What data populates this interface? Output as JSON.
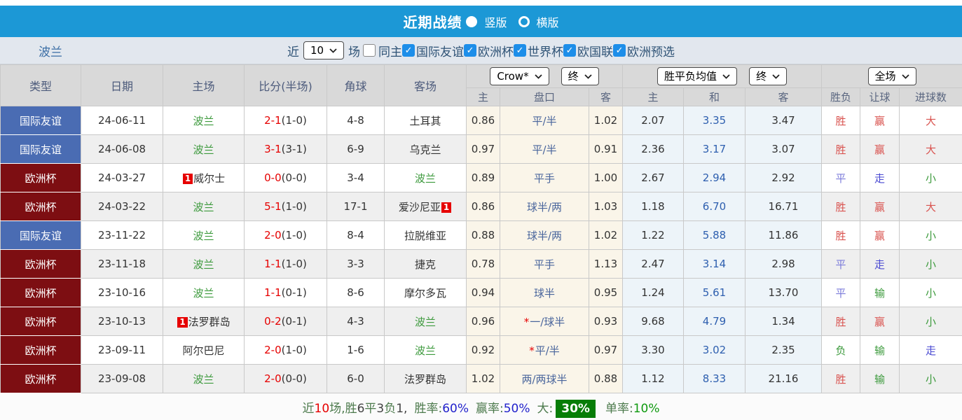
{
  "colors": {
    "header_bar_blue": "#1c98d6",
    "friendly_badge_blue": "#4a6cb3",
    "eurocup_badge_maroon": "#7d0e12",
    "team_highlight_green": "#3d9a3d",
    "score_red": "#e60000",
    "win_red": "#d9534f",
    "draw_purple": "#7b7bda",
    "go_blue": "#4a4ad2",
    "lose_green": "#3c9a3c",
    "asia_odds_col_bg": "#faf5e9",
    "euro_odds_col_bg": "#edf4f9",
    "rate_blue": "#2222cc",
    "big_rate_badge_green": "#077d07"
  },
  "title_bar": {
    "title": "近期战绩",
    "options": [
      {
        "label": "竖版",
        "selected": true
      },
      {
        "label": "横版",
        "selected": false
      }
    ]
  },
  "filter_bar": {
    "team": "波兰",
    "near": "近",
    "count": "10",
    "unit": "场",
    "same_home": "同主",
    "same_home_checked": false,
    "leagues": [
      {
        "label": "国际友谊",
        "checked": true
      },
      {
        "label": "欧洲杯",
        "checked": true
      },
      {
        "label": "世界杯",
        "checked": true
      },
      {
        "label": "欧国联",
        "checked": true
      },
      {
        "label": "欧洲预选",
        "checked": true
      }
    ]
  },
  "table": {
    "main_headers": [
      "类型",
      "日期",
      "主场",
      "比分(半场)",
      "角球",
      "客场"
    ],
    "odds_groups": [
      {
        "selects": [
          "Crow*",
          "终"
        ]
      },
      {
        "selects": [
          "胜平负均值",
          "终"
        ]
      },
      {
        "selects": [
          "全场"
        ]
      }
    ],
    "sub_headers": [
      "主",
      "盘口",
      "客",
      "主",
      "和",
      "客",
      "胜负",
      "让球",
      "进球数"
    ],
    "rows": [
      {
        "type": "国际友谊",
        "type_style": "friendly",
        "date": "24-06-11",
        "home": {
          "name": "波兰",
          "team": true
        },
        "score": "2-1",
        "half": "(1-0)",
        "corners": "4-8",
        "away": {
          "name": "土耳其",
          "team": false
        },
        "asia_home": "0.86",
        "handicap": "平/半",
        "handicap_star": false,
        "asia_away": "1.02",
        "euro_home": "2.07",
        "euro_draw": "3.35",
        "euro_away": "3.47",
        "outcome": {
          "text": "胜",
          "color": "red"
        },
        "handicap_result": {
          "text": "赢",
          "color": "red"
        },
        "goals": {
          "text": "大",
          "color": "red"
        }
      },
      {
        "type": "国际友谊",
        "type_style": "friendly",
        "date": "24-06-08",
        "home": {
          "name": "波兰",
          "team": true
        },
        "score": "3-1",
        "half": "(3-1)",
        "corners": "6-9",
        "away": {
          "name": "乌克兰",
          "team": false
        },
        "asia_home": "0.97",
        "handicap": "平/半",
        "handicap_star": false,
        "asia_away": "0.91",
        "euro_home": "2.36",
        "euro_draw": "3.17",
        "euro_away": "3.07",
        "outcome": {
          "text": "胜",
          "color": "red"
        },
        "handicap_result": {
          "text": "赢",
          "color": "red"
        },
        "goals": {
          "text": "大",
          "color": "red"
        }
      },
      {
        "type": "欧洲杯",
        "type_style": "euro",
        "date": "24-03-27",
        "home": {
          "name": "威尔士",
          "team": false,
          "card": "1",
          "card_pos": "before"
        },
        "score": "0-0",
        "half": "(0-0)",
        "corners": "3-4",
        "away": {
          "name": "波兰",
          "team": true
        },
        "asia_home": "0.89",
        "handicap": "平手",
        "handicap_star": false,
        "asia_away": "1.00",
        "euro_home": "2.67",
        "euro_draw": "2.94",
        "euro_away": "2.92",
        "outcome": {
          "text": "平",
          "color": "purple"
        },
        "handicap_result": {
          "text": "走",
          "color": "blue"
        },
        "goals": {
          "text": "小",
          "color": "green"
        }
      },
      {
        "type": "欧洲杯",
        "type_style": "euro",
        "date": "24-03-22",
        "home": {
          "name": "波兰",
          "team": true
        },
        "score": "5-1",
        "half": "(1-0)",
        "corners": "17-1",
        "away": {
          "name": "爱沙尼亚",
          "team": false,
          "card": "1",
          "card_pos": "after"
        },
        "asia_home": "0.86",
        "handicap": "球半/两",
        "handicap_star": false,
        "asia_away": "1.03",
        "euro_home": "1.18",
        "euro_draw": "6.70",
        "euro_away": "16.71",
        "outcome": {
          "text": "胜",
          "color": "red"
        },
        "handicap_result": {
          "text": "赢",
          "color": "red"
        },
        "goals": {
          "text": "大",
          "color": "red"
        }
      },
      {
        "type": "国际友谊",
        "type_style": "friendly",
        "date": "23-11-22",
        "home": {
          "name": "波兰",
          "team": true
        },
        "score": "2-0",
        "half": "(1-0)",
        "corners": "8-4",
        "away": {
          "name": "拉脱维亚",
          "team": false
        },
        "asia_home": "0.88",
        "handicap": "球半/两",
        "handicap_star": false,
        "asia_away": "1.02",
        "euro_home": "1.22",
        "euro_draw": "5.88",
        "euro_away": "11.86",
        "outcome": {
          "text": "胜",
          "color": "red"
        },
        "handicap_result": {
          "text": "赢",
          "color": "red"
        },
        "goals": {
          "text": "小",
          "color": "green"
        }
      },
      {
        "type": "欧洲杯",
        "type_style": "euro",
        "date": "23-11-18",
        "home": {
          "name": "波兰",
          "team": true
        },
        "score": "1-1",
        "half": "(1-0)",
        "corners": "3-3",
        "away": {
          "name": "捷克",
          "team": false
        },
        "asia_home": "0.78",
        "handicap": "平手",
        "handicap_star": false,
        "asia_away": "1.13",
        "euro_home": "2.47",
        "euro_draw": "3.14",
        "euro_away": "2.98",
        "outcome": {
          "text": "平",
          "color": "purple"
        },
        "handicap_result": {
          "text": "走",
          "color": "blue"
        },
        "goals": {
          "text": "小",
          "color": "green"
        }
      },
      {
        "type": "欧洲杯",
        "type_style": "euro",
        "date": "23-10-16",
        "home": {
          "name": "波兰",
          "team": true
        },
        "score": "1-1",
        "half": "(0-1)",
        "corners": "8-6",
        "away": {
          "name": "摩尔多瓦",
          "team": false
        },
        "asia_home": "0.94",
        "handicap": "球半",
        "handicap_star": false,
        "asia_away": "0.95",
        "euro_home": "1.24",
        "euro_draw": "5.61",
        "euro_away": "13.70",
        "outcome": {
          "text": "平",
          "color": "purple"
        },
        "handicap_result": {
          "text": "输",
          "color": "green"
        },
        "goals": {
          "text": "小",
          "color": "green"
        }
      },
      {
        "type": "欧洲杯",
        "type_style": "euro",
        "date": "23-10-13",
        "home": {
          "name": "法罗群岛",
          "team": false,
          "card": "1",
          "card_pos": "before"
        },
        "score": "0-2",
        "half": "(0-1)",
        "corners": "4-3",
        "away": {
          "name": "波兰",
          "team": true
        },
        "asia_home": "0.96",
        "handicap": "一/球半",
        "handicap_star": true,
        "asia_away": "0.93",
        "euro_home": "9.68",
        "euro_draw": "4.79",
        "euro_away": "1.34",
        "outcome": {
          "text": "胜",
          "color": "red"
        },
        "handicap_result": {
          "text": "赢",
          "color": "red"
        },
        "goals": {
          "text": "小",
          "color": "green"
        }
      },
      {
        "type": "欧洲杯",
        "type_style": "euro",
        "date": "23-09-11",
        "home": {
          "name": "阿尔巴尼",
          "team": false
        },
        "score": "2-0",
        "half": "(1-0)",
        "corners": "1-6",
        "away": {
          "name": "波兰",
          "team": true
        },
        "asia_home": "0.92",
        "handicap": "平/半",
        "handicap_star": true,
        "asia_away": "0.97",
        "euro_home": "3.30",
        "euro_draw": "3.02",
        "euro_away": "2.35",
        "outcome": {
          "text": "负",
          "color": "green"
        },
        "handicap_result": {
          "text": "输",
          "color": "green"
        },
        "goals": {
          "text": "走",
          "color": "blue"
        }
      },
      {
        "type": "欧洲杯",
        "type_style": "euro",
        "date": "23-09-08",
        "home": {
          "name": "波兰",
          "team": true
        },
        "score": "2-0",
        "half": "(0-0)",
        "corners": "6-0",
        "away": {
          "name": "法罗群岛",
          "team": false
        },
        "asia_home": "1.02",
        "handicap": "两/两球半",
        "handicap_star": false,
        "asia_away": "0.88",
        "euro_home": "1.12",
        "euro_draw": "8.33",
        "euro_away": "21.16",
        "outcome": {
          "text": "胜",
          "color": "red"
        },
        "handicap_result": {
          "text": "输",
          "color": "green"
        },
        "goals": {
          "text": "小",
          "color": "green"
        }
      }
    ]
  },
  "summary": {
    "segments": [
      {
        "text": "近",
        "color": "green"
      },
      {
        "text": "10",
        "color": "red"
      },
      {
        "text": "场,",
        "color": "green"
      },
      {
        "text": "胜",
        "color": "green"
      },
      {
        "text": "6",
        "color": "dark"
      },
      {
        "text": "平",
        "color": "green"
      },
      {
        "text": "3",
        "color": "dark"
      },
      {
        "text": "负",
        "color": "green"
      },
      {
        "text": "1,",
        "color": "dark"
      },
      {
        "text": "胜率:",
        "color": "green",
        "space_before": true
      },
      {
        "text": "60%",
        "color": "blue"
      },
      {
        "text": "赢率:",
        "color": "green",
        "space_before": true
      },
      {
        "text": "50%",
        "color": "blue"
      },
      {
        "text": "大:",
        "color": "green",
        "space_before": true
      },
      {
        "text": "30%",
        "color": "badge"
      },
      {
        "text": "单率:",
        "color": "green",
        "space_before": true
      },
      {
        "text": "10%",
        "color": "vgreen"
      }
    ]
  }
}
